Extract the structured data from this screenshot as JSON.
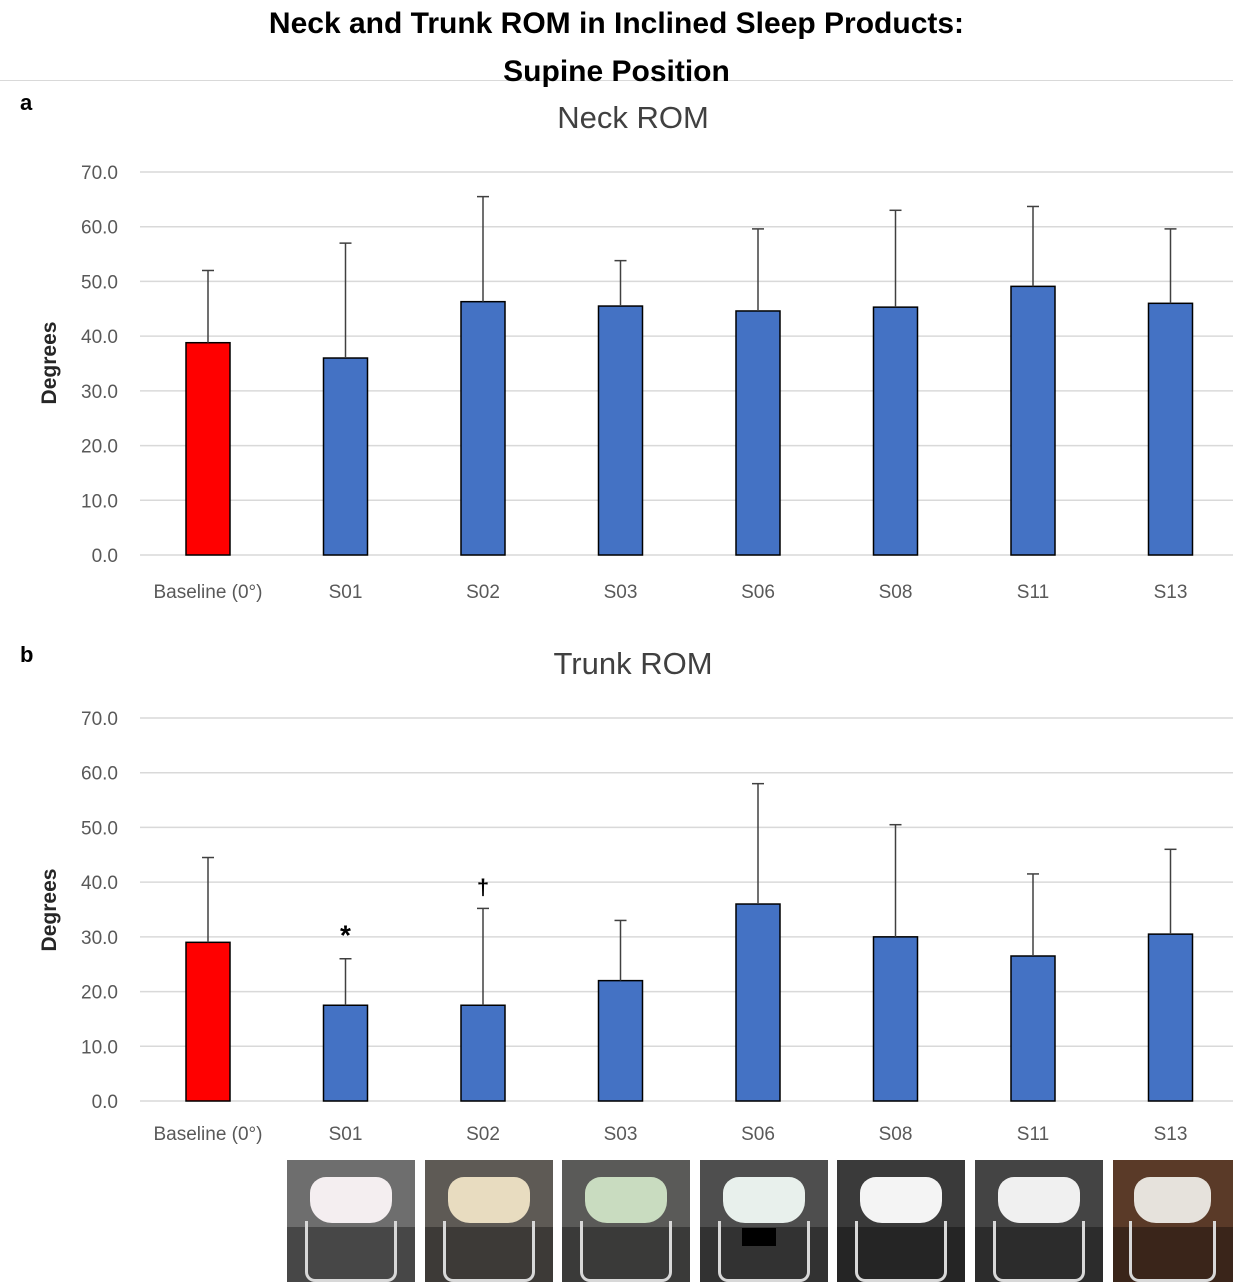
{
  "figure": {
    "title_line1": "Neck and Trunk ROM in Inclined Sleep Products:",
    "title_line2": "Supine Position"
  },
  "colors": {
    "baseline": "#ff0000",
    "product": "#4472c4",
    "grid": "#d9d9d9",
    "axis_text": "#595959"
  },
  "chart_data": [
    {
      "type": "bar",
      "panel": "a",
      "title": "Neck ROM",
      "xlabel": "",
      "ylabel": "Degrees",
      "ylim": [
        0,
        70
      ],
      "yticks": [
        "0.0",
        "10.0",
        "20.0",
        "30.0",
        "40.0",
        "50.0",
        "60.0",
        "70.0"
      ],
      "grid": true,
      "categories": [
        "Baseline (0°)",
        "S01",
        "S02",
        "S03",
        "S06",
        "S08",
        "S11",
        "S13"
      ],
      "values": [
        38.8,
        36.0,
        46.3,
        45.5,
        44.6,
        45.3,
        49.1,
        46.0
      ],
      "error_upper": [
        52.0,
        57.0,
        65.5,
        53.8,
        59.6,
        63.0,
        63.7,
        59.6
      ],
      "annotations": []
    },
    {
      "type": "bar",
      "panel": "b",
      "title": "Trunk ROM",
      "xlabel": "",
      "ylabel": "Degrees",
      "ylim": [
        0,
        70
      ],
      "yticks": [
        "0.0",
        "10.0",
        "20.0",
        "30.0",
        "40.0",
        "50.0",
        "60.0",
        "70.0"
      ],
      "grid": true,
      "categories": [
        "Baseline (0°)",
        "S01",
        "S02",
        "S03",
        "S06",
        "S08",
        "S11",
        "S13"
      ],
      "values": [
        29.0,
        17.5,
        17.5,
        22.0,
        36.0,
        30.0,
        26.5,
        30.5
      ],
      "error_upper": [
        44.5,
        26.0,
        35.2,
        33.0,
        58.0,
        50.5,
        41.5,
        46.0
      ],
      "annotations": [
        {
          "category": "S01",
          "symbol": "*"
        },
        {
          "category": "S02",
          "symbol": "†"
        }
      ]
    }
  ],
  "photos": [
    {
      "product": "S01",
      "bg": "#6e6e6e",
      "seat": "#f4eef0"
    },
    {
      "product": "S02",
      "bg": "#5e5a55",
      "seat": "#e8dcc0"
    },
    {
      "product": "S03",
      "bg": "#5a5a58",
      "seat": "#c9dcc0"
    },
    {
      "product": "S06",
      "bg": "#4e4e4e",
      "seat": "#e8f0ec"
    },
    {
      "product": "S08",
      "bg": "#3a3a3a",
      "seat": "#f4f4f4"
    },
    {
      "product": "S11",
      "bg": "#444444",
      "seat": "#f0f0f0"
    },
    {
      "product": "S13",
      "bg": "#5a3a28",
      "seat": "#e6e2dc"
    }
  ]
}
